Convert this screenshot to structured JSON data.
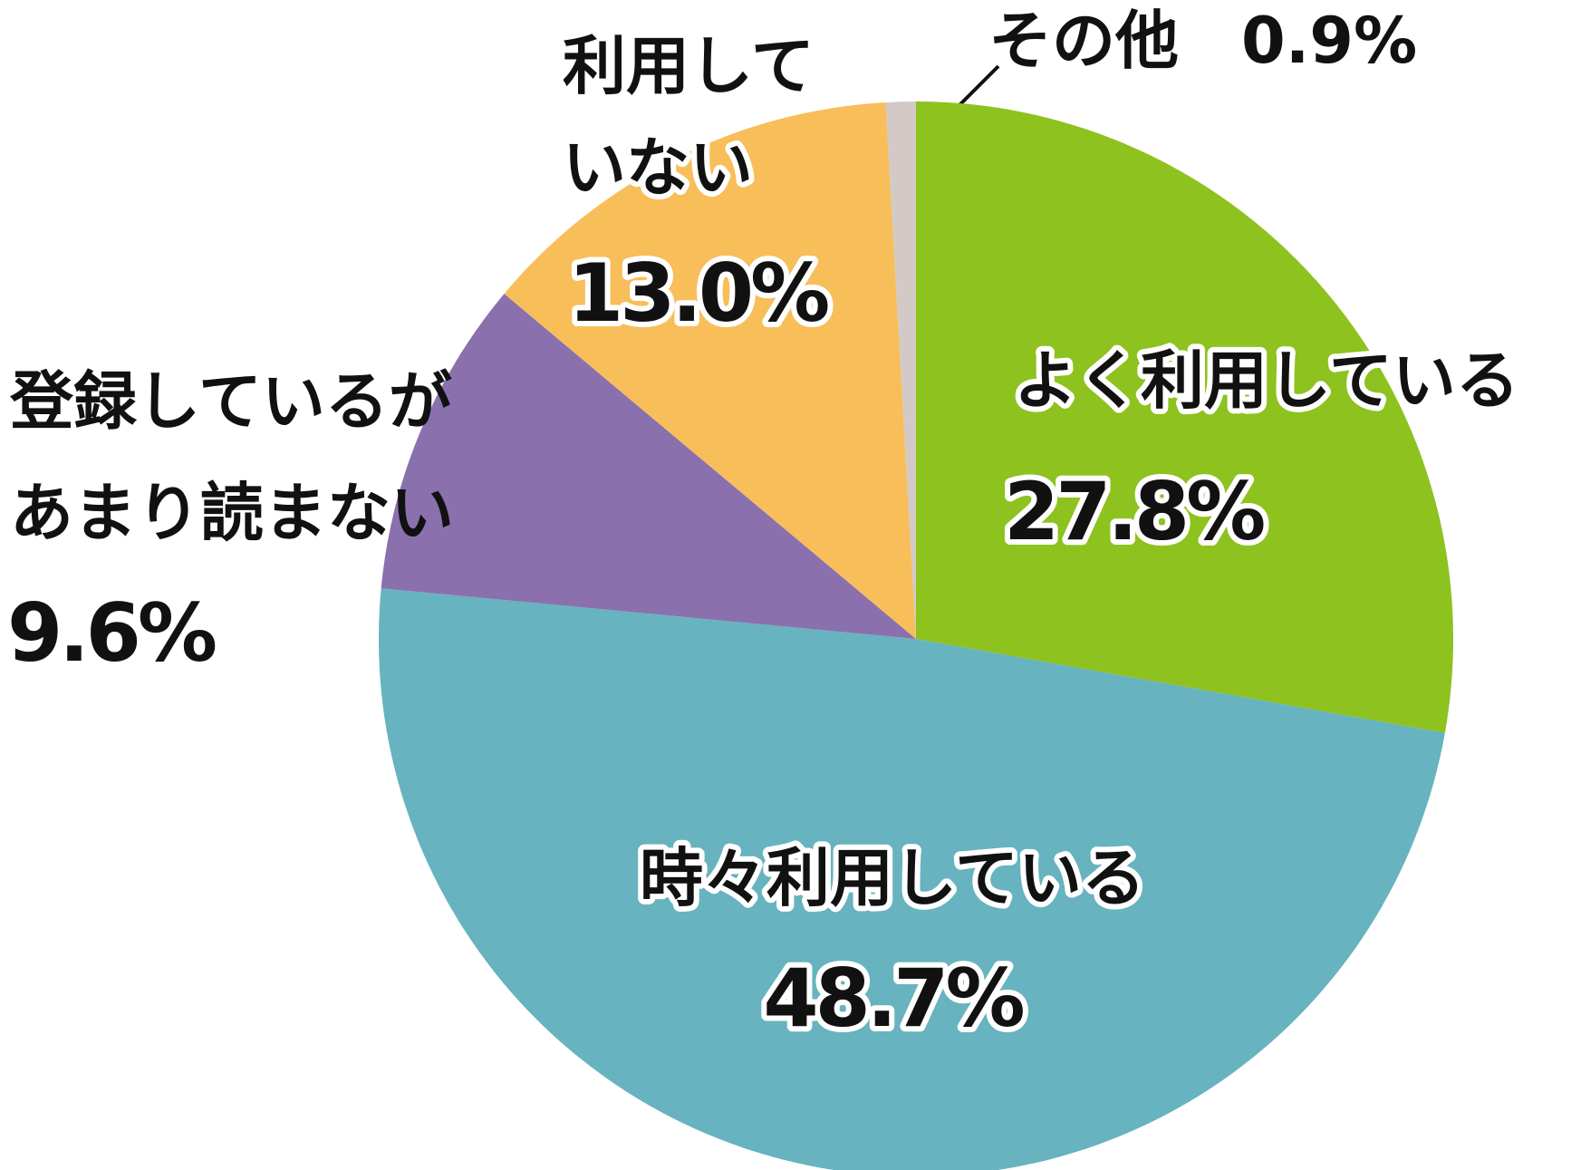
{
  "chart_data": {
    "type": "pie",
    "categories": [
      [
        "よく利用している"
      ],
      [
        "時々利用している"
      ],
      [
        "登録しているが",
        "あまり読まない"
      ],
      [
        "利用して",
        "いない"
      ],
      [
        "その他"
      ]
    ],
    "values": [
      27.8,
      48.7,
      9.6,
      13.0,
      0.9
    ],
    "value_labels": [
      "27.8%",
      "48.7%",
      "9.6%",
      "13.0%",
      "0.9%"
    ],
    "colors": [
      "#8dc21f",
      "#67b3bf",
      "#8b70ae",
      "#f7be5a",
      "#d3c9c6"
    ]
  }
}
